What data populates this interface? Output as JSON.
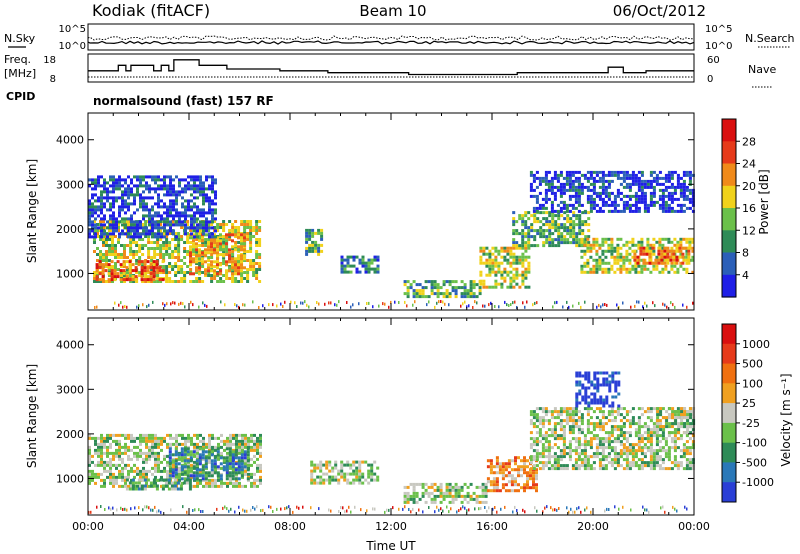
{
  "header": {
    "station": "Kodiak (fitACF)",
    "beam": "Beam 10",
    "date": "06/Oct/2012",
    "mode": "normalsound (fast) 157 RF"
  },
  "chart_data": [
    {
      "type": "line",
      "panel": "noise",
      "left_label": "N.Sky",
      "right_label": "N.Search",
      "left_ticks": [
        "10^5",
        "10^0"
      ],
      "right_ticks": [
        "10^5",
        "10^0"
      ]
    },
    {
      "type": "line",
      "panel": "frequency",
      "left_label_1": "Freq.",
      "left_label_2": "[MHz]",
      "left_label_3": "CPID",
      "left_ticks": [
        "18",
        "8"
      ],
      "right_label": "Nave",
      "right_ticks": [
        "60",
        "0"
      ],
      "freq_steps": [
        [
          0.0,
          13
        ],
        [
          0.8,
          13
        ],
        [
          1.2,
          16
        ],
        [
          1.5,
          13
        ],
        [
          1.7,
          16
        ],
        [
          2.3,
          16
        ],
        [
          2.6,
          13
        ],
        [
          2.9,
          16
        ],
        [
          3.2,
          13
        ],
        [
          3.4,
          19
        ],
        [
          4.0,
          19
        ],
        [
          4.4,
          16
        ],
        [
          5.0,
          16
        ],
        [
          5.5,
          14
        ],
        [
          7.0,
          14
        ],
        [
          7.6,
          13
        ],
        [
          9.2,
          13
        ],
        [
          9.5,
          12
        ],
        [
          12.4,
          12
        ],
        [
          12.7,
          11
        ],
        [
          16.7,
          11
        ],
        [
          17.0,
          12
        ],
        [
          20.3,
          12
        ],
        [
          20.6,
          15
        ],
        [
          21.2,
          12
        ],
        [
          21.8,
          12
        ],
        [
          22.1,
          13
        ],
        [
          24.0,
          13
        ]
      ]
    },
    {
      "type": "heatmap",
      "panel": "power",
      "ylabel": "Slant Range [km]",
      "yticks": [
        "1000",
        "2000",
        "3000",
        "4000"
      ],
      "ylim": [
        180,
        4600
      ],
      "xlim": [
        0,
        24
      ],
      "colorbar_label": "Power [dB]",
      "colorbar_ticks": [
        "4",
        "8",
        "12",
        "16",
        "20",
        "24",
        "28"
      ],
      "colors": [
        "#1f1fe6",
        "#2b5fb8",
        "#2e8b57",
        "#6bc04a",
        "#f0d21b",
        "#f08a1a",
        "#e63a1a",
        "#d90f0f"
      ],
      "regions": [
        {
          "t0": 0.2,
          "t1": 6.8,
          "r0": 800,
          "r1": 2200,
          "lvl": 4
        },
        {
          "t0": 0.3,
          "t1": 3.0,
          "r0": 850,
          "r1": 1300,
          "lvl": 6
        },
        {
          "t0": 4.0,
          "t1": 6.2,
          "r0": 1000,
          "r1": 1900,
          "lvl": 5
        },
        {
          "t0": 0.0,
          "t1": 5.0,
          "r0": 1800,
          "r1": 3200,
          "lvl": 1
        },
        {
          "t0": 8.6,
          "t1": 9.2,
          "r0": 1400,
          "r1": 2000,
          "lvl": 3
        },
        {
          "t0": 10.0,
          "t1": 11.5,
          "r0": 1000,
          "r1": 1400,
          "lvl": 2
        },
        {
          "t0": 12.5,
          "t1": 15.5,
          "r0": 450,
          "r1": 850,
          "lvl": 3
        },
        {
          "t0": 15.5,
          "t1": 17.5,
          "r0": 700,
          "r1": 1600,
          "lvl": 4
        },
        {
          "t0": 16.8,
          "t1": 19.8,
          "r0": 1600,
          "r1": 2400,
          "lvl": 3
        },
        {
          "t0": 17.5,
          "t1": 24.0,
          "r0": 2400,
          "r1": 3300,
          "lvl": 1
        },
        {
          "t0": 19.5,
          "t1": 24.0,
          "r0": 1000,
          "r1": 1800,
          "lvl": 4
        },
        {
          "t0": 21.6,
          "t1": 23.8,
          "r0": 1200,
          "r1": 1600,
          "lvl": 6
        }
      ]
    },
    {
      "type": "heatmap",
      "panel": "velocity",
      "ylabel": "Slant Range [km]",
      "yticks": [
        "1000",
        "2000",
        "3000",
        "4000"
      ],
      "xlabel": "Time UT",
      "xticks": [
        "00:00",
        "04:00",
        "08:00",
        "12:00",
        "16:00",
        "20:00",
        "00:00"
      ],
      "ylim": [
        180,
        4600
      ],
      "xlim": [
        0,
        24
      ],
      "colorbar_label": "Velocity [m s⁻¹]",
      "colorbar_ticks": [
        "1000",
        "500",
        "100",
        "25",
        "-25",
        "-100",
        "-500",
        "-1000"
      ],
      "colors": [
        "#2a3fd6",
        "#2a78b8",
        "#2e8b57",
        "#6bc04a",
        "#c8c8c0",
        "#f0a020",
        "#f07010",
        "#e63a1a",
        "#d90f0f"
      ],
      "regions": [
        {
          "t0": 0.0,
          "t1": 6.8,
          "r0": 800,
          "r1": 2000,
          "lvl": 4
        },
        {
          "t0": 3.2,
          "t1": 6.4,
          "r0": 1000,
          "r1": 1700,
          "lvl": 2
        },
        {
          "t0": 1.5,
          "t1": 4.0,
          "r0": 750,
          "r1": 1000,
          "lvl": 3
        },
        {
          "t0": 8.8,
          "t1": 11.5,
          "r0": 900,
          "r1": 1400,
          "lvl": 4
        },
        {
          "t0": 12.5,
          "t1": 15.8,
          "r0": 450,
          "r1": 900,
          "lvl": 4
        },
        {
          "t0": 15.8,
          "t1": 17.8,
          "r0": 700,
          "r1": 1500,
          "lvl": 6
        },
        {
          "t0": 17.5,
          "t1": 24.0,
          "r0": 1200,
          "r1": 2600,
          "lvl": 4
        },
        {
          "t0": 19.3,
          "t1": 21.0,
          "r0": 2600,
          "r1": 3400,
          "lvl": 0
        },
        {
          "t0": 22.5,
          "t1": 24.0,
          "r0": 2000,
          "r1": 2600,
          "lvl": 4
        }
      ]
    }
  ]
}
